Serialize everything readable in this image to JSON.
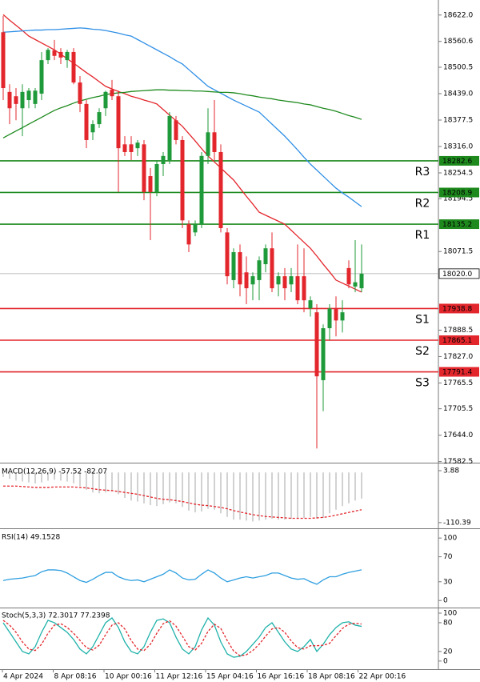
{
  "chart_data": [
    {
      "type": "candlestick",
      "ylim": [
        17580,
        18657
      ],
      "yticks": [
        {
          "value": 18622,
          "label": "18622.0"
        },
        18560.6,
        18500.5,
        {
          "value": 18439,
          "label": "18439.0"
        },
        18377.5,
        {
          "value": 18316,
          "label": "18316.0"
        },
        18254.5,
        18194.5,
        18071.5,
        17888.5,
        {
          "value": 17827,
          "label": "17827.0"
        },
        17765.5,
        17705.5,
        {
          "value": 17644,
          "label": "17644.0"
        },
        17582.5
      ],
      "up_color": "#1f9a3a",
      "down_color": "#e3262c",
      "open": [
        18582,
        18443,
        18433,
        18405,
        18424,
        18415,
        18439,
        18517,
        18540,
        18536,
        18517,
        18536,
        18465,
        18415,
        18349,
        18368,
        18405,
        18448,
        18433,
        18321,
        18321,
        18312,
        18321,
        18247,
        18210,
        18275,
        18284,
        18377,
        18331,
        18135,
        18116,
        18135,
        18294,
        18349,
        18303,
        18116,
        18005,
        18070,
        18023,
        17995,
        18005,
        18042,
        18079,
        17995,
        18014,
        17995,
        18014,
        18014,
        17939,
        17930,
        17772,
        17893,
        17939,
        17911,
        18033,
        17990,
        17986
      ],
      "high": [
        18620,
        18461,
        18452,
        18461,
        18452,
        18452,
        18536,
        18545,
        18564,
        18545,
        18541,
        18545,
        18480,
        18424,
        18377,
        18405,
        18446,
        18471,
        18446,
        18340,
        18340,
        18331,
        18331,
        18266,
        18284,
        18303,
        18396,
        18387,
        18340,
        18144,
        18144,
        18303,
        18405,
        18424,
        18321,
        18126,
        18079,
        18088,
        18060,
        18023,
        18060,
        18088,
        18116,
        18023,
        18033,
        18033,
        18088,
        18079,
        17967,
        17949,
        17902,
        17949,
        17967,
        17958,
        18051,
        18098,
        18088
      ],
      "low": [
        18424,
        18368,
        18377,
        18340,
        18405,
        18405,
        18424,
        18508,
        18517,
        18508,
        18499,
        18461,
        18396,
        18312,
        18331,
        18359,
        18387,
        18424,
        18210,
        18294,
        18284,
        18294,
        18191,
        18098,
        18200,
        18247,
        18275,
        18321,
        18126,
        18070,
        18107,
        18126,
        18275,
        18284,
        18116,
        17995,
        17986,
        17967,
        17949,
        17958,
        17958,
        18023,
        17977,
        17967,
        17958,
        17977,
        17949,
        17930,
        17920,
        17613,
        17700,
        17865,
        17874,
        17883,
        17986,
        17977,
        17977
      ],
      "close": [
        18452,
        18405,
        18415,
        18443,
        18446,
        18446,
        18517,
        18541,
        18527,
        18523,
        18536,
        18465,
        18415,
        18331,
        18368,
        18396,
        18443,
        18433,
        18312,
        18303,
        18303,
        18325,
        18210,
        18210,
        18275,
        18294,
        18387,
        18331,
        18144,
        18088,
        18135,
        18294,
        18349,
        18303,
        18126,
        18014,
        18070,
        17995,
        17986,
        18014,
        18051,
        18079,
        17986,
        18014,
        17986,
        18014,
        17958,
        17958,
        17958,
        17781,
        17893,
        17939,
        17911,
        17930,
        17995,
        18000,
        18020
      ],
      "moving_averages": [
        {
          "color": "#e3262c",
          "values": [
            18623,
            18610,
            18598,
            18586,
            18573,
            18565,
            18557,
            18549,
            18541,
            18531,
            18520,
            18510,
            18499,
            18488,
            18478,
            18467,
            18456,
            18450,
            18444,
            18439,
            18433,
            18429,
            18424,
            18420,
            18415,
            18402,
            18389,
            18376,
            18363,
            18346,
            18329,
            18311,
            18294,
            18280,
            18266,
            18252,
            18238,
            18219,
            18200,
            18182,
            18163,
            18156,
            18149,
            18142,
            18135,
            18121,
            18107,
            18093,
            18079,
            18061,
            18042,
            18024,
            18005,
            17998,
            17991,
            17984,
            17977
          ]
        },
        {
          "color": "#2f8fe6",
          "values": [
            18582,
            18583,
            18584,
            18585,
            18586,
            18587,
            18587,
            18588,
            18588,
            18589,
            18590,
            18591,
            18592,
            18591,
            18589,
            18588,
            18586,
            18583,
            18580,
            18576,
            18573,
            18565,
            18557,
            18549,
            18541,
            18533,
            18525,
            18516,
            18508,
            18495,
            18482,
            18469,
            18456,
            18448,
            18440,
            18432,
            18424,
            18417,
            18410,
            18403,
            18396,
            18382,
            18368,
            18354,
            18340,
            18324,
            18308,
            18291,
            18275,
            18261,
            18247,
            18233,
            18219,
            18208,
            18198,
            18187,
            18176
          ]
        },
        {
          "color": "#1e8a1e",
          "values": [
            18336,
            18344,
            18352,
            18360,
            18368,
            18376,
            18384,
            18392,
            18400,
            18406,
            18411,
            18417,
            18422,
            18426,
            18430,
            18433,
            18437,
            18439,
            18441,
            18442,
            18444,
            18445,
            18446,
            18447,
            18448,
            18448,
            18447,
            18447,
            18446,
            18446,
            18445,
            18445,
            18444,
            18443,
            18442,
            18442,
            18441,
            18439,
            18436,
            18434,
            18431,
            18429,
            18427,
            18424,
            18422,
            18420,
            18418,
            18415,
            18413,
            18409,
            18405,
            18402,
            18398,
            18393,
            18388,
            18384,
            18379
          ]
        }
      ],
      "levels": [
        {
          "name": "R3",
          "value": 18282.6,
          "color": "#1e8a1e"
        },
        {
          "name": "R2",
          "value": 18208.9,
          "color": "#1e8a1e"
        },
        {
          "name": "R1",
          "value": 18135.2,
          "color": "#1e8a1e"
        },
        {
          "name": "S1",
          "value": 17938.8,
          "color": "#e3262c"
        },
        {
          "name": "S2",
          "value": 17865.1,
          "color": "#e3262c"
        },
        {
          "name": "S3",
          "value": 17791.4,
          "color": "#e3262c"
        }
      ],
      "last_price": {
        "value": 18020,
        "label": "18020.0"
      },
      "x_labels": [
        "4 Apr 2024",
        "8 Apr 08:16",
        "10 Apr 00:16",
        "11 Apr 12:16",
        "15 Apr 04:16",
        "16 Apr 16:16",
        "18 Apr 08:16",
        "22 Apr 00:16"
      ]
    },
    {
      "type": "macd",
      "label": "MACD(12,26,9) -57.52 -82.07",
      "ylim": [
        -123,
        18
      ],
      "yticks": [
        3.88,
        -110.39
      ],
      "histogram": {
        "color": "#b4b4b4",
        "values": [
          -10,
          -14,
          -18,
          -20,
          -22,
          -24,
          -22,
          -18,
          -16,
          -18,
          -20,
          -24,
          -30,
          -38,
          -44,
          -46,
          -44,
          -42,
          -48,
          -56,
          -62,
          -64,
          -68,
          -72,
          -74,
          -70,
          -66,
          -68,
          -76,
          -84,
          -88,
          -86,
          -80,
          -82,
          -90,
          -98,
          -104,
          -104,
          -106,
          -108,
          -106,
          -104,
          -102,
          -104,
          -104,
          -102,
          -102,
          -100,
          -98,
          -102,
          -100,
          -90,
          -82,
          -74,
          -68,
          -62,
          -57.52
        ]
      },
      "signal": {
        "color": "#e3262c",
        "values": [
          -30,
          -30,
          -30,
          -31,
          -32,
          -33,
          -33,
          -33,
          -32,
          -32,
          -32,
          -32,
          -33,
          -34,
          -36,
          -38,
          -39,
          -40,
          -42,
          -44,
          -46,
          -48,
          -51,
          -54,
          -57,
          -59,
          -60,
          -62,
          -64,
          -67,
          -70,
          -72,
          -73,
          -75,
          -77,
          -80,
          -84,
          -87,
          -90,
          -93,
          -95,
          -97,
          -98,
          -99,
          -100,
          -101,
          -101,
          -101,
          -101,
          -100,
          -99,
          -97,
          -94,
          -91,
          -88,
          -85,
          -82.07
        ]
      }
    },
    {
      "type": "line",
      "label": "RSI(14) 49.1528",
      "ylim": [
        -10,
        113
      ],
      "yticks": [
        100,
        70,
        30,
        0
      ],
      "series": [
        {
          "color": "#2f9fe0",
          "values": [
            32,
            34,
            35,
            36,
            38,
            40,
            46,
            49,
            49,
            48,
            44,
            38,
            32,
            29,
            34,
            40,
            45,
            45,
            38,
            34,
            32,
            33,
            30,
            34,
            38,
            42,
            49,
            44,
            36,
            33,
            34,
            42,
            49,
            44,
            36,
            30,
            33,
            36,
            38,
            36,
            38,
            40,
            44,
            44,
            40,
            36,
            34,
            35,
            30,
            26,
            33,
            38,
            38,
            42,
            45,
            47,
            49.1528
          ]
        }
      ]
    },
    {
      "type": "line",
      "label": "Stoch(5,3,3) 72.3017 77.2398",
      "ylim": [
        -17,
        110
      ],
      "yticks": [
        100,
        80,
        20,
        0
      ],
      "series": [
        {
          "color": "#20b2aa",
          "values": [
            80,
            60,
            40,
            20,
            15,
            30,
            60,
            85,
            80,
            70,
            60,
            45,
            25,
            15,
            30,
            55,
            80,
            90,
            70,
            40,
            20,
            15,
            30,
            60,
            85,
            88,
            80,
            50,
            25,
            15,
            30,
            65,
            90,
            75,
            40,
            15,
            8,
            10,
            20,
            35,
            50,
            70,
            80,
            60,
            40,
            25,
            20,
            30,
            45,
            20,
            35,
            55,
            70,
            80,
            82,
            75,
            72.3017
          ]
        },
        {
          "color": "#e3262c",
          "dash": true,
          "values": [
            85,
            75,
            60,
            40,
            25,
            22,
            35,
            58,
            75,
            78,
            70,
            58,
            43,
            28,
            23,
            33,
            55,
            75,
            80,
            67,
            43,
            25,
            22,
            35,
            58,
            78,
            84,
            73,
            52,
            30,
            23,
            37,
            62,
            77,
            68,
            43,
            21,
            11,
            13,
            22,
            35,
            52,
            67,
            70,
            60,
            42,
            28,
            25,
            32,
            32,
            33,
            37,
            53,
            68,
            77,
            79,
            77.2398
          ]
        }
      ]
    }
  ]
}
